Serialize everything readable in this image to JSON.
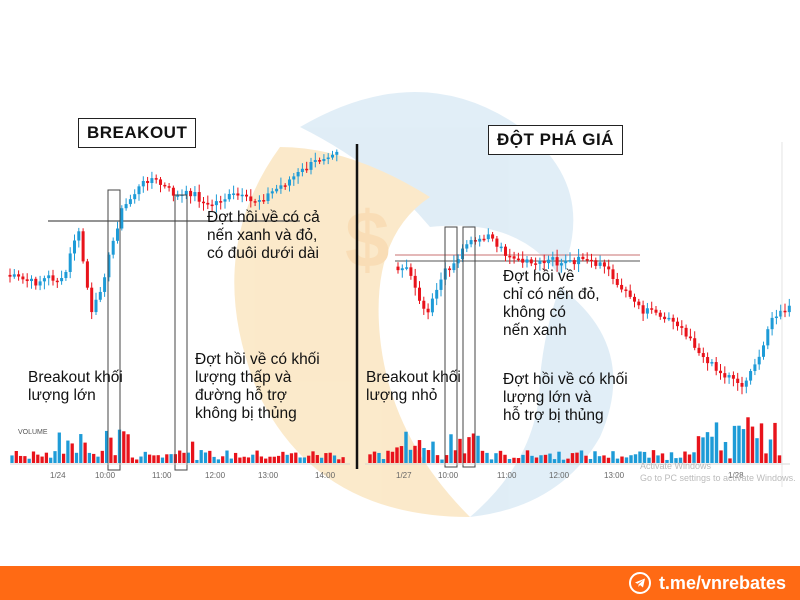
{
  "colors": {
    "up": "#1e9bd7",
    "down": "#e8131b",
    "footer": "#ff6a14",
    "resistance_right": "#c87070",
    "support_left": "#555555"
  },
  "chart_data": [
    {
      "type": "candlestick",
      "title": "BREAKOUT",
      "x_ticks": [
        "1/24",
        "10:00",
        "11:00",
        "12:00",
        "13:00",
        "14:00"
      ],
      "volume_label": "VOLUME",
      "breakout_level_note": "horizontal support line",
      "annotations": [
        "Breakout khối\nlượng lớn",
        "Đợt hồi về có cả\nnến xanh và đỏ,\ncó đuôi dưới dài",
        "Đợt hồi về có khối\nlượng thấp và\nđường hỗ trợ\nkhông bị thủng"
      ]
    },
    {
      "type": "candlestick",
      "title": "ĐỘT PHÁ GIÁ",
      "x_ticks": [
        "1/27",
        "10:00",
        "11:00",
        "12:00",
        "13:00",
        "1/28"
      ],
      "annotations": [
        "Đợt hồi về\nchỉ có nến đỏ,\nkhông có\nnến xanh",
        "Breakout khối\nlượng nhỏ",
        "Đợt hồi về có khối\nlượng lớn và\nhỗ trợ bị thủng"
      ]
    }
  ],
  "left": {
    "title": "BREAKOUT",
    "note_volume": "Breakout khối\nlượng lớn",
    "note_pullback": "Đợt hồi về có cả\nnến xanh và đỏ,\ncó đuôi dưới dài",
    "note_support": "Đợt hồi về có khối\nlượng thấp và\nđường hỗ trợ\nkhông bị thủng"
  },
  "right": {
    "title": "ĐỘT PHÁ GIÁ",
    "note_pullback": "Đợt hồi về\nchỉ có nến đỏ,\nkhông có\nnến xanh",
    "note_volume": "Breakout khối\nlượng nhỏ",
    "note_support": "Đợt hồi về có khối\nlượng lớn và\nhỗ trợ bị thủng"
  },
  "watermark": {
    "line1": "Activate Windows",
    "line2": "Go to PC settings to activate Windows."
  },
  "footer": {
    "link": "t.me/vnrebates",
    "icon": "telegram-icon"
  }
}
